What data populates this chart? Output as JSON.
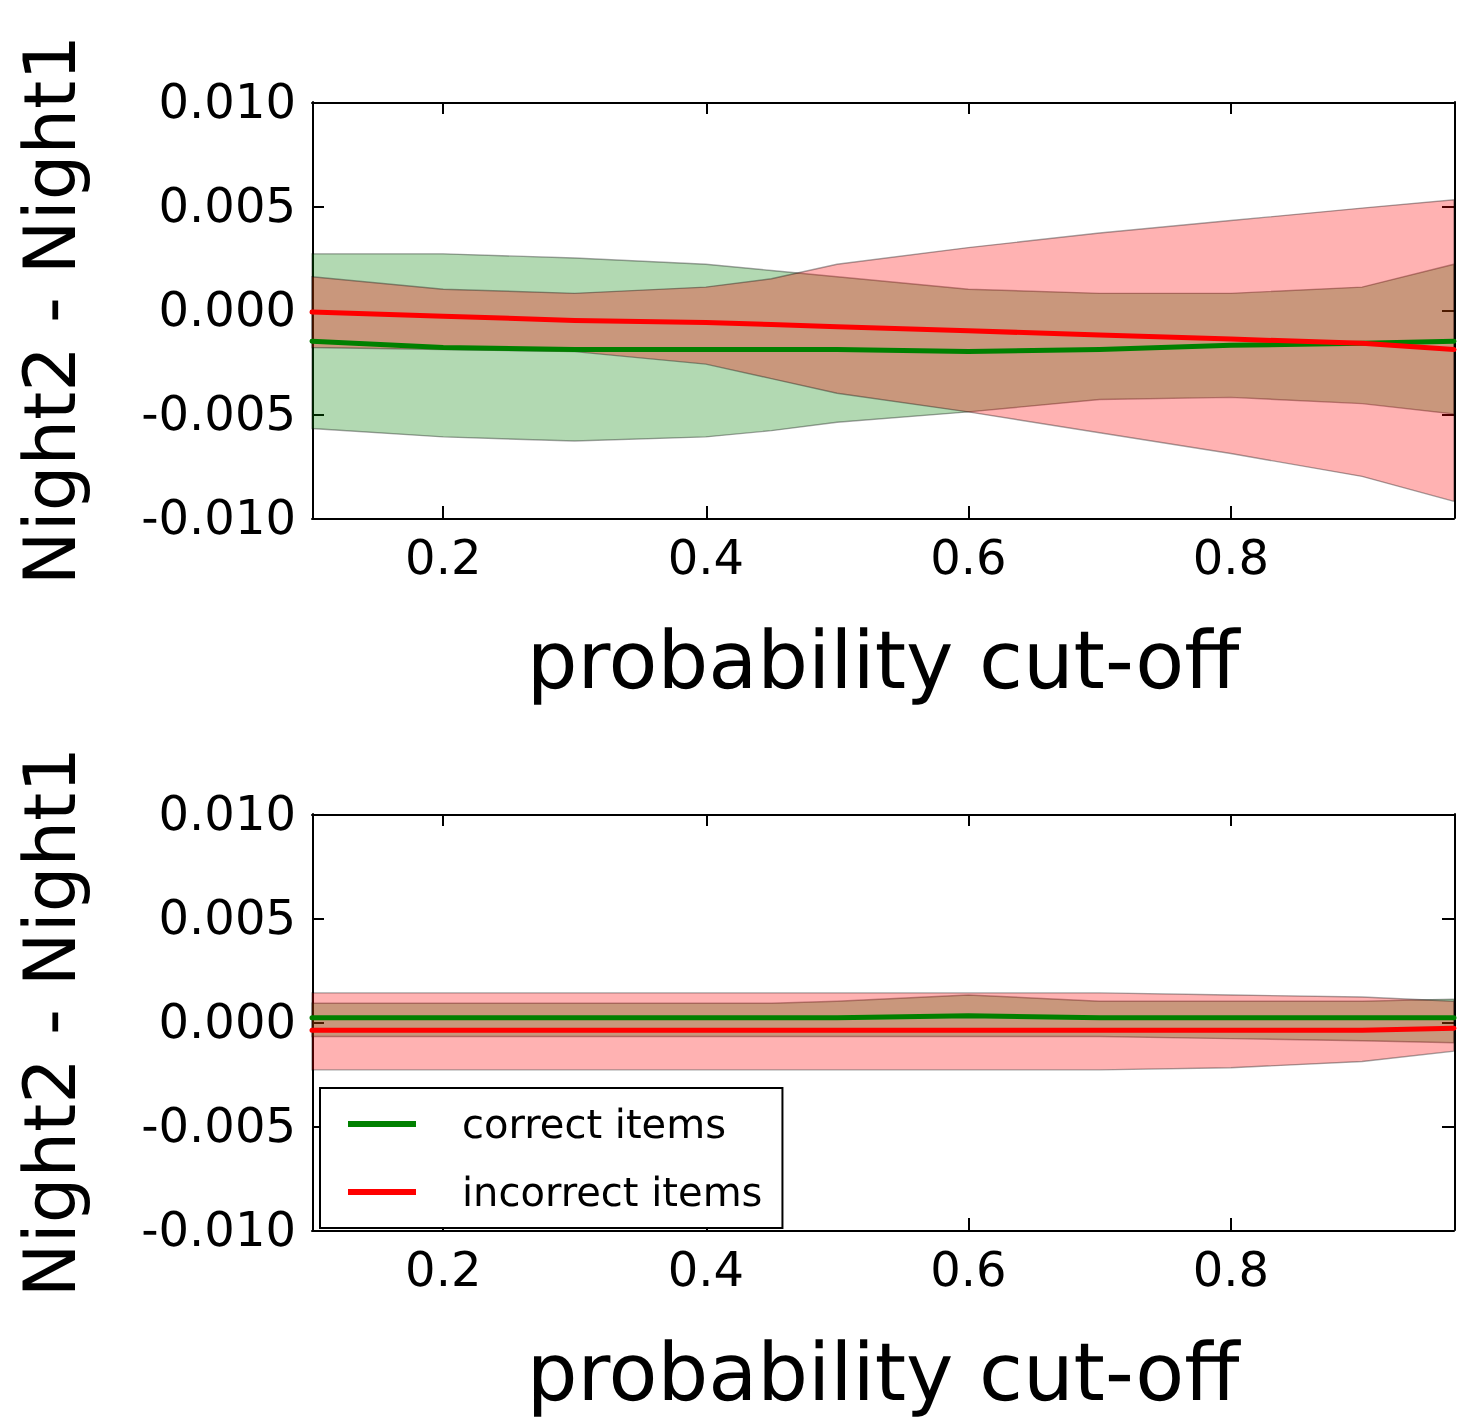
{
  "chart_data": [
    {
      "type": "line",
      "xlabel": "probability cut-off",
      "ylabel": "Night2 - Night1",
      "x": [
        0.1,
        0.2,
        0.3,
        0.4,
        0.45,
        0.5,
        0.6,
        0.7,
        0.8,
        0.9,
        0.97
      ],
      "xlim": [
        0.1,
        0.97
      ],
      "xticks": [
        0.2,
        0.4,
        0.6,
        0.8
      ],
      "ylim": [
        -0.01,
        0.01
      ],
      "yticks": [
        {
          "value": -0.01,
          "label": "-0.010"
        },
        {
          "value": -0.005,
          "label": "-0.005"
        },
        {
          "value": 0,
          "label": "0.000"
        },
        {
          "value": 0.005,
          "label": "0.005"
        },
        {
          "value": 0.01,
          "label": "0.010"
        }
      ],
      "grid": false,
      "legend": false,
      "series": [
        {
          "color": "#008000",
          "values": [
            -0.0015,
            -0.0018,
            -0.0019,
            -0.0019,
            -0.0019,
            -0.0019,
            -0.002,
            -0.0019,
            -0.0017,
            -0.0016,
            -0.0015
          ],
          "lower": [
            -0.0057,
            -0.0061,
            -0.0063,
            -0.0061,
            -0.0058,
            -0.0054,
            -0.0049,
            -0.0043,
            -0.0042,
            -0.0045,
            -0.005
          ],
          "upper": [
            0.0027,
            0.0027,
            0.0025,
            0.0022,
            0.0019,
            0.0016,
            0.001,
            0.0008,
            0.0008,
            0.0011,
            0.0022
          ]
        },
        {
          "color": "#ff0000",
          "values": [
            -0.0001,
            -0.0003,
            -0.0005,
            -0.0006,
            -0.0007,
            -0.0008,
            -0.001,
            -0.0012,
            -0.0014,
            -0.0016,
            -0.0019
          ],
          "lower": [
            -0.0018,
            -0.0019,
            -0.002,
            -0.0026,
            -0.0033,
            -0.004,
            -0.0049,
            -0.0059,
            -0.0069,
            -0.008,
            -0.0092
          ],
          "upper": [
            0.0016,
            0.001,
            0.0008,
            0.0011,
            0.0015,
            0.0022,
            0.003,
            0.0037,
            0.0043,
            0.0049,
            0.0053
          ]
        }
      ]
    },
    {
      "type": "line",
      "xlabel": "probability cut-off",
      "ylabel": "Night2 - Night1",
      "x": [
        0.1,
        0.2,
        0.3,
        0.4,
        0.45,
        0.5,
        0.6,
        0.7,
        0.8,
        0.9,
        0.97
      ],
      "xlim": [
        0.1,
        0.97
      ],
      "xticks": [
        0.2,
        0.4,
        0.6,
        0.8
      ],
      "ylim": [
        -0.01,
        0.01
      ],
      "yticks": [
        {
          "value": -0.01,
          "label": "-0.010"
        },
        {
          "value": -0.005,
          "label": "-0.005"
        },
        {
          "value": 0,
          "label": "0.000"
        },
        {
          "value": 0.005,
          "label": "0.005"
        },
        {
          "value": 0.01,
          "label": "0.010"
        }
      ],
      "grid": false,
      "legend": "bottom left",
      "series": [
        {
          "name": "correct items",
          "color": "#008000",
          "values": [
            0.0002,
            0.0002,
            0.0002,
            0.0002,
            0.0002,
            0.0002,
            0.0003,
            0.0002,
            0.0002,
            0.0002,
            0.0002
          ],
          "lower": [
            -0.0007,
            -0.0007,
            -0.0007,
            -0.0007,
            -0.0007,
            -0.0007,
            -0.0007,
            -0.0007,
            -0.0008,
            -0.0009,
            -0.001
          ],
          "upper": [
            0.0009,
            0.0009,
            0.0009,
            0.0009,
            0.0009,
            0.001,
            0.0013,
            0.001,
            0.001,
            0.001,
            0.0011
          ]
        },
        {
          "name": "incorrect items",
          "color": "#ff0000",
          "values": [
            -0.0004,
            -0.0004,
            -0.0004,
            -0.0004,
            -0.0004,
            -0.0004,
            -0.0004,
            -0.0004,
            -0.0004,
            -0.0004,
            -0.0003
          ],
          "lower": [
            -0.0023,
            -0.0023,
            -0.0023,
            -0.0023,
            -0.0023,
            -0.0023,
            -0.0023,
            -0.0023,
            -0.0022,
            -0.0019,
            -0.0014
          ],
          "upper": [
            0.0014,
            0.0014,
            0.0014,
            0.0014,
            0.0014,
            0.0014,
            0.0014,
            0.0014,
            0.0013,
            0.0012,
            0.001
          ]
        }
      ]
    }
  ]
}
